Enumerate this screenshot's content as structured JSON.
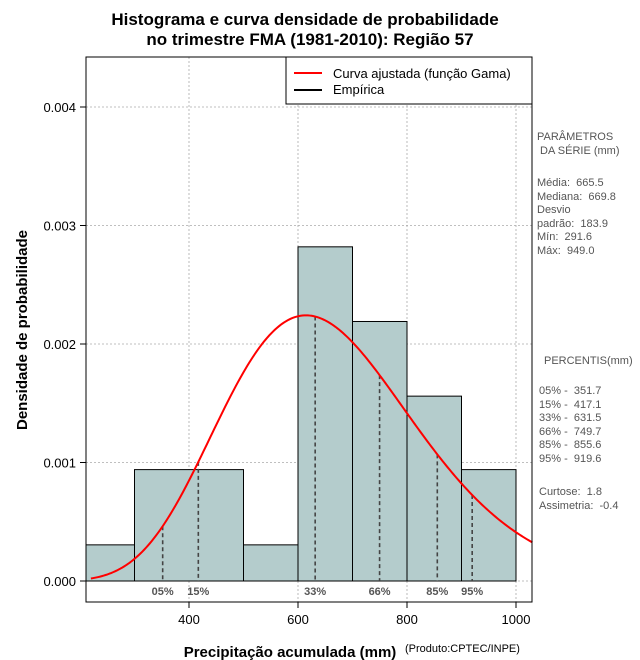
{
  "chart_data": {
    "type": "histogram",
    "title_line1": "Histograma e curva densidade de probabilidade",
    "title_line2": "no trimestre FMA (1981-2010): Região 57",
    "xlabel": "Precipitação acumulada (mm)",
    "ylabel": "Densidade de probabilidade",
    "credit": "(Produto:CPTEC/INPE)",
    "xlim": [
      220,
      1030
    ],
    "ylim": [
      0,
      0.0044
    ],
    "x_ticks": [
      400,
      600,
      800,
      1000
    ],
    "y_ticks": [
      0.0,
      0.001,
      0.002,
      0.003,
      0.004
    ],
    "y_tick_labels": [
      "0.000",
      "0.001",
      "0.002",
      "0.003",
      "0.004"
    ],
    "bins": [
      {
        "start": 200,
        "end": 300,
        "density": 0.000305
      },
      {
        "start": 300,
        "end": 500,
        "density": 0.00094
      },
      {
        "start": 500,
        "end": 600,
        "density": 0.000305
      },
      {
        "start": 600,
        "end": 700,
        "density": 0.00282
      },
      {
        "start": 700,
        "end": 800,
        "density": 0.00219
      },
      {
        "start": 800,
        "end": 900,
        "density": 0.00156
      },
      {
        "start": 900,
        "end": 1000,
        "density": 0.00094
      }
    ],
    "fitted_curve": {
      "name": "Curva ajustada (função Gama)",
      "color": "#ff0000",
      "mean": 665.5,
      "sd": 183.9
    },
    "empirical": {
      "name": "Empírica",
      "color": "#000000"
    },
    "bar_fill": "#b4cccc",
    "percentiles": [
      {
        "label": "05%",
        "value": 351.7
      },
      {
        "label": "15%",
        "value": 417.1
      },
      {
        "label": "33%",
        "value": 631.5
      },
      {
        "label": "66%",
        "value": 749.7
      },
      {
        "label": "85%",
        "value": 855.6
      },
      {
        "label": "95%",
        "value": 919.6
      }
    ]
  },
  "stats": {
    "heading": "PARÂMETROS\n DA SÉRIE (mm)",
    "lines": "Média:  665.5\nMediana:  669.8\nDesvio\npadrão:  183.9\nMín:  291.6\nMáx:  949.0"
  },
  "percentis_panel": {
    "heading": "PERCENTIS(mm)",
    "lines": "05% -  351.7\n15% -  417.1\n33% -  631.5\n66% -  749.7\n85% -  855.6\n95% -  919.6",
    "shape": "Curtose:  1.8\nAssimetria:  -0.4"
  }
}
